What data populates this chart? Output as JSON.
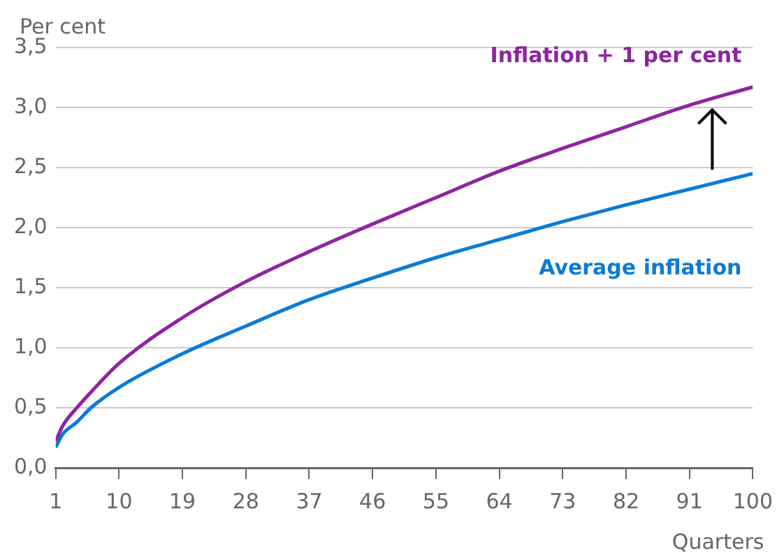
{
  "chart_data": {
    "type": "line",
    "ylabel": "Per cent",
    "xlabel": "Quarters",
    "x": [
      1,
      2,
      4,
      6,
      10,
      19,
      28,
      37,
      46,
      55,
      64,
      73,
      82,
      91,
      100
    ],
    "series": [
      {
        "name": "Inflation + 1 per cent",
        "color": "#8e24a0",
        "values": [
          0.22,
          0.35,
          0.5,
          0.63,
          0.87,
          1.25,
          1.55,
          1.8,
          2.03,
          2.25,
          2.47,
          2.66,
          2.84,
          3.02,
          3.17
        ]
      },
      {
        "name": "Average inflation",
        "color": "#0a7bd6",
        "values": [
          0.17,
          0.28,
          0.38,
          0.5,
          0.67,
          0.95,
          1.18,
          1.4,
          1.58,
          1.75,
          1.9,
          2.05,
          2.19,
          2.32,
          2.45
        ]
      }
    ],
    "xlim": [
      1,
      100
    ],
    "xticks": [
      1,
      10,
      19,
      28,
      37,
      46,
      55,
      64,
      73,
      82,
      91,
      100
    ],
    "ylim": [
      0,
      3.5
    ],
    "yticks": [
      {
        "value": 0,
        "label": "0,0"
      },
      {
        "value": 0.5,
        "label": "0,5"
      },
      {
        "value": 1,
        "label": "1,0"
      },
      {
        "value": 1.5,
        "label": "1,5"
      },
      {
        "value": 2,
        "label": "2,0"
      },
      {
        "value": 2.5,
        "label": "2,5"
      },
      {
        "value": 3,
        "label": "3,0"
      },
      {
        "value": 3.5,
        "label": "3,5"
      }
    ],
    "grid": "y",
    "legend": false,
    "marker": "none",
    "line_style": "solid"
  }
}
